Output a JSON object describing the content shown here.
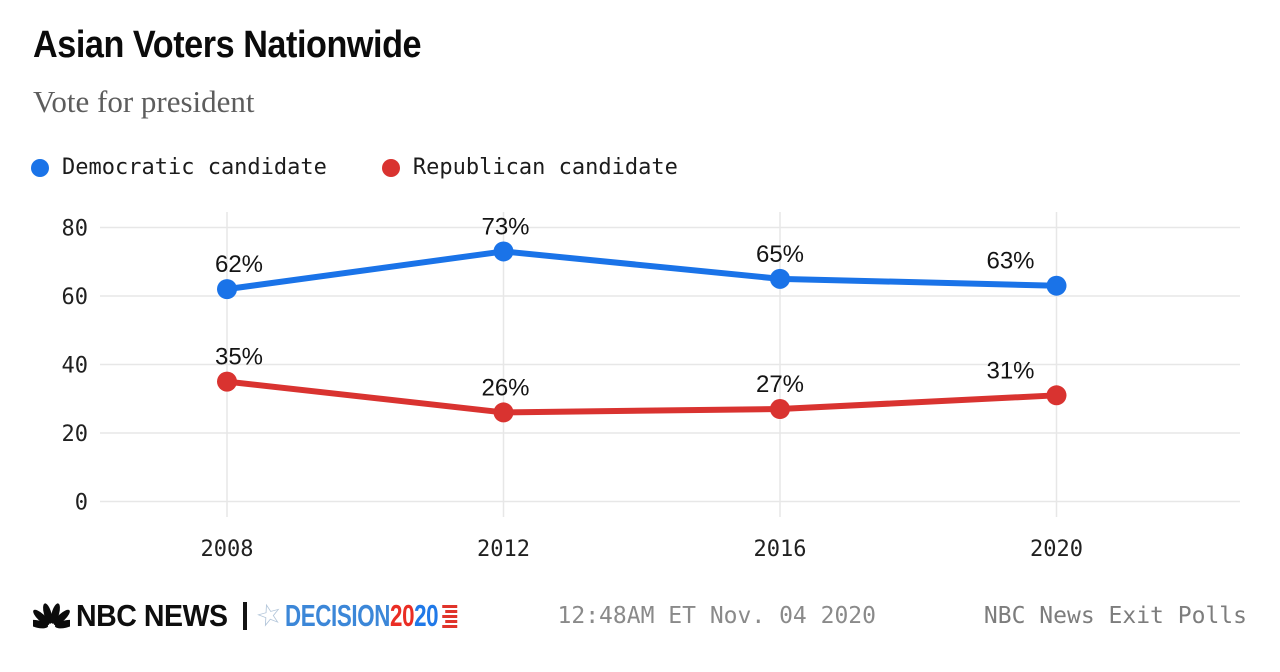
{
  "header": {
    "title": "Asian Voters Nationwide",
    "subtitle": "Vote for president"
  },
  "chart_data": {
    "type": "line",
    "title": "Asian Voters Nationwide",
    "subtitle": "Vote for president",
    "x": [
      "2008",
      "2012",
      "2016",
      "2020"
    ],
    "series": [
      {
        "name": "Democratic candidate",
        "color": "#1a73e8",
        "values": [
          62,
          73,
          65,
          63
        ],
        "labels": [
          "62%",
          "73%",
          "65%",
          "63%"
        ]
      },
      {
        "name": "Republican candidate",
        "color": "#d93330",
        "values": [
          35,
          26,
          27,
          31
        ],
        "labels": [
          "35%",
          "26%",
          "27%",
          "31%"
        ]
      }
    ],
    "xlabel": "",
    "ylabel": "",
    "ylim": [
      0,
      80
    ],
    "yticks": [
      0,
      20,
      40,
      60,
      80
    ],
    "grid": true,
    "legend_position": "top",
    "value_suffix": "%"
  },
  "footer": {
    "brand": {
      "nbc": "NBC NEWS",
      "decision": "DECISION",
      "year_first": "20",
      "year_second": "20"
    },
    "timestamp": "12:48AM ET Nov. 04 2020",
    "source": "NBC News Exit Polls"
  },
  "colors": {
    "dem_blue": "#1a73e8",
    "rep_red": "#d93330",
    "grid_gray": "#e7e7e7",
    "decision_blue": "#3c87d8",
    "decision_red": "#ea2d24",
    "year_blue": "#2079e8",
    "star_blue_gray": "#b3c6da",
    "stripe_red": "#e0342b"
  }
}
